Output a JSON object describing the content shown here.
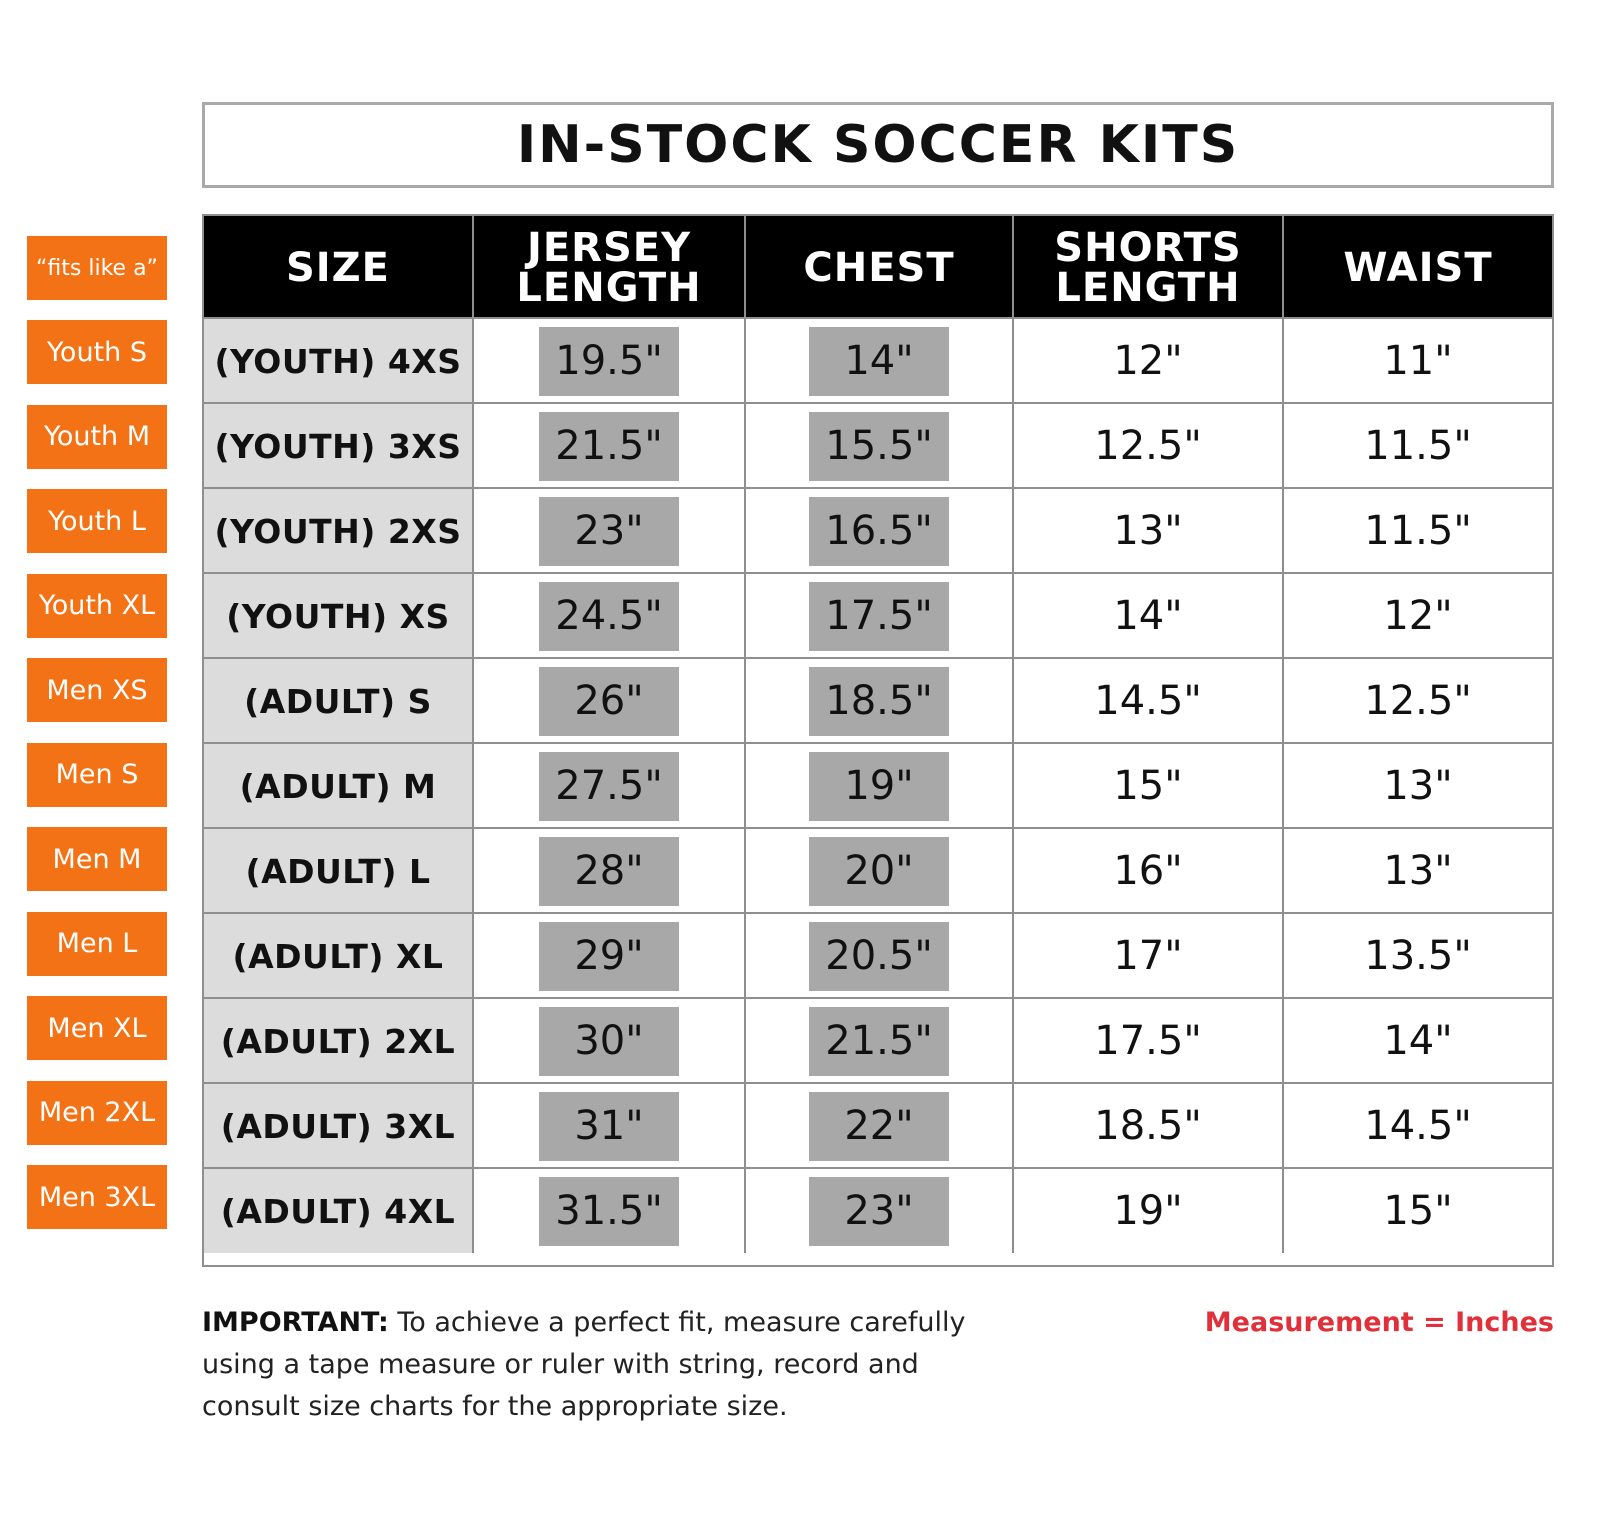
{
  "title": "IN-STOCK SOCCER KITS",
  "fits_label": "“fits like a”",
  "columns": [
    "SIZE",
    "JERSEY LENGTH",
    "CHEST",
    "SHORTS LENGTH",
    "WAIST"
  ],
  "columns_split": {
    "jersey_line1": "JERSEY",
    "jersey_line2": "LENGTH",
    "shorts_line1": "SHORTS",
    "shorts_line2": "LENGTH"
  },
  "rows": [
    {
      "fits": "Youth S",
      "size": "(YOUTH) 4XS",
      "jersey": "19.5\"",
      "chest": "14\"",
      "shorts": "12\"",
      "waist": "11\""
    },
    {
      "fits": "Youth M",
      "size": "(YOUTH) 3XS",
      "jersey": "21.5\"",
      "chest": "15.5\"",
      "shorts": "12.5\"",
      "waist": "11.5\""
    },
    {
      "fits": "Youth L",
      "size": "(YOUTH) 2XS",
      "jersey": "23\"",
      "chest": "16.5\"",
      "shorts": "13\"",
      "waist": "11.5\""
    },
    {
      "fits": "Youth XL",
      "size": "(YOUTH) XS",
      "jersey": "24.5\"",
      "chest": "17.5\"",
      "shorts": "14\"",
      "waist": "12\""
    },
    {
      "fits": "Men XS",
      "size": "(ADULT) S",
      "jersey": "26\"",
      "chest": "18.5\"",
      "shorts": "14.5\"",
      "waist": "12.5\""
    },
    {
      "fits": "Men S",
      "size": "(ADULT) M",
      "jersey": "27.5\"",
      "chest": "19\"",
      "shorts": "15\"",
      "waist": "13\""
    },
    {
      "fits": "Men M",
      "size": "(ADULT) L",
      "jersey": "28\"",
      "chest": "20\"",
      "shorts": "16\"",
      "waist": "13\""
    },
    {
      "fits": "Men L",
      "size": "(ADULT) XL",
      "jersey": "29\"",
      "chest": "20.5\"",
      "shorts": "17\"",
      "waist": "13.5\""
    },
    {
      "fits": "Men XL",
      "size": "(ADULT) 2XL",
      "jersey": "30\"",
      "chest": "21.5\"",
      "shorts": "17.5\"",
      "waist": "14\""
    },
    {
      "fits": "Men 2XL",
      "size": "(ADULT) 3XL",
      "jersey": "31\"",
      "chest": "22\"",
      "shorts": "18.5\"",
      "waist": "14.5\""
    },
    {
      "fits": "Men 3XL",
      "size": "(ADULT) 4XL",
      "jersey": "31.5\"",
      "chest": "23\"",
      "shorts": "19\"",
      "waist": "15\""
    }
  ],
  "note": {
    "label": "IMPORTANT:",
    "text": " To achieve a perfect fit, measure carefully using a tape measure or ruler with string, record and consult size charts for the appropriate size."
  },
  "unit_note": "Measurement = Inches",
  "colors": {
    "accent_orange": "#f47216",
    "header_black": "#000000",
    "highlight_gray": "#a8a8a8",
    "size_col_gray": "#dcdcdc",
    "unit_red": "#e0303a"
  }
}
